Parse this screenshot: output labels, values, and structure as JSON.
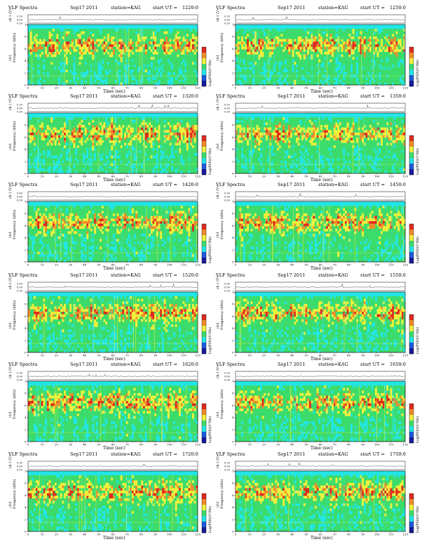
{
  "title_left": "VLF Spectra",
  "ch1_axis_label": "ch.1 (V)",
  "freq_axis_label": "Frequency (kHz)",
  "ch1_sub_label": "ch1",
  "time_axis_label": "Time (sec)",
  "colorbar_label": "Log(PSD)(V²/Hz)",
  "ch1_ticks": [
    "0.30",
    "0.00",
    "0.30"
  ],
  "freq_ticks": [
    "0",
    "2",
    "4",
    "6",
    "8",
    "10"
  ],
  "colors": {
    "blue_dark": "#1a1a9a",
    "blue": "#1e5adc",
    "cyan": "#22e6e6",
    "green": "#3cdc6c",
    "yellow": "#f0f03c",
    "orange": "#f08c2c",
    "red": "#e02a1e"
  },
  "chart_data": [
    {
      "type": "heatmap",
      "date": "Sep17 2011",
      "station": "station=KAG",
      "start_label": "start  UT  =",
      "start_time": "1220:0",
      "x_ticks": [
        "0",
        "10",
        "20",
        "30",
        "40",
        "50",
        "60",
        "70",
        "80",
        "90",
        "100",
        "110",
        "120"
      ],
      "xlim": [
        0,
        120
      ],
      "ylim": [
        0,
        10
      ]
    },
    {
      "type": "heatmap",
      "date": "Sep17 2011",
      "station": "station=KAG",
      "start_label": "start  UT  =",
      "start_time": "1250:0",
      "x_ticks": [
        "0",
        "10",
        "20",
        "30",
        "40",
        "50",
        "60",
        "70",
        "80",
        "90",
        "100",
        "110",
        "120"
      ],
      "xlim": [
        0,
        120
      ],
      "ylim": [
        0,
        10
      ]
    },
    {
      "type": "heatmap",
      "date": "Sep17 2011",
      "station": "station=KAG",
      "start_label": "start  UT  =",
      "start_time": "1320:0",
      "x_ticks": [
        "0",
        "10",
        "20",
        "30",
        "40",
        "50",
        "60",
        "70",
        "80",
        "90",
        "100",
        "110",
        "120"
      ],
      "xlim": [
        0,
        120
      ],
      "ylim": [
        0,
        10
      ]
    },
    {
      "type": "heatmap",
      "date": "Sep17 2011",
      "station": "station=KAG",
      "start_label": "start  UT  =",
      "start_time": "1350:0",
      "x_ticks": [
        "0",
        "10",
        "20",
        "30",
        "40",
        "50",
        "60",
        "70",
        "80",
        "90",
        "100",
        "110",
        "120"
      ],
      "xlim": [
        0,
        120
      ],
      "ylim": [
        0,
        10
      ]
    },
    {
      "type": "heatmap",
      "date": "Sep17 2011",
      "station": "station=KAG",
      "start_label": "start  UT  =",
      "start_time": "1420:0",
      "x_ticks": [
        "0",
        "10",
        "20",
        "30",
        "40",
        "50",
        "60",
        "70",
        "80",
        "90",
        "100",
        "110",
        "120"
      ],
      "xlim": [
        0,
        120
      ],
      "ylim": [
        0,
        10
      ]
    },
    {
      "type": "heatmap",
      "date": "Sep17 2011",
      "station": "station=KAG",
      "start_label": "start  UT  =",
      "start_time": "1450:0",
      "x_ticks": [
        "0",
        "10",
        "20",
        "30",
        "40",
        "50",
        "60",
        "70",
        "80",
        "90",
        "100",
        "110",
        "120"
      ],
      "xlim": [
        0,
        120
      ],
      "ylim": [
        0,
        10
      ]
    },
    {
      "type": "heatmap",
      "date": "Sep17 2011",
      "station": "station=KAG",
      "start_label": "start  UT  =",
      "start_time": "1520:0",
      "x_ticks": [
        "0",
        "10",
        "20",
        "30",
        "40",
        "50",
        "60",
        "70",
        "80",
        "90",
        "100",
        "110",
        "120"
      ],
      "xlim": [
        0,
        120
      ],
      "ylim": [
        0,
        10
      ]
    },
    {
      "type": "heatmap",
      "date": "Sep17 2011",
      "station": "station=KAG",
      "start_label": "start  UT  =",
      "start_time": "1550:0",
      "x_ticks": [
        "0",
        "10",
        "20",
        "30",
        "40",
        "50",
        "60",
        "70",
        "80",
        "90",
        "100",
        "110",
        "120"
      ],
      "xlim": [
        0,
        120
      ],
      "ylim": [
        0,
        10
      ]
    },
    {
      "type": "heatmap",
      "date": "Sep17 2011",
      "station": "station=KAG",
      "start_label": "start  UT  =",
      "start_time": "1620:0",
      "x_ticks": [
        "0",
        "10",
        "20",
        "30",
        "40",
        "50",
        "60",
        "70",
        "80",
        "90",
        "100",
        "110",
        "120"
      ],
      "xlim": [
        0,
        120
      ],
      "ylim": [
        0,
        10
      ]
    },
    {
      "type": "heatmap",
      "date": "Sep17 2011",
      "station": "station=KAG",
      "start_label": "start  UT  =",
      "start_time": "1650:0",
      "x_ticks": [
        "0",
        "10",
        "20",
        "30",
        "40",
        "50",
        "60",
        "70",
        "80",
        "90",
        "100",
        "110",
        "120"
      ],
      "xlim": [
        0,
        120
      ],
      "ylim": [
        0,
        10
      ]
    },
    {
      "type": "heatmap",
      "date": "Sep17 2011",
      "station": "station=KAG",
      "start_label": "start  UT  =",
      "start_time": "1720:0",
      "x_ticks": [
        "0",
        "10",
        "20",
        "30",
        "40",
        "50",
        "60",
        "70",
        "80",
        "90",
        "100",
        "110",
        "120"
      ],
      "xlim": [
        0,
        120
      ],
      "ylim": [
        0,
        10
      ]
    },
    {
      "type": "heatmap",
      "date": "Sep17 2011",
      "station": "station=KAG",
      "start_label": "start  UT  =",
      "start_time": "1750:0",
      "x_ticks": [
        "0",
        "10",
        "20",
        "30",
        "40",
        "50",
        "60",
        "70",
        "80",
        "90",
        "100",
        "110",
        "120"
      ],
      "xlim": [
        0,
        120
      ],
      "ylim": [
        0,
        10
      ]
    }
  ]
}
